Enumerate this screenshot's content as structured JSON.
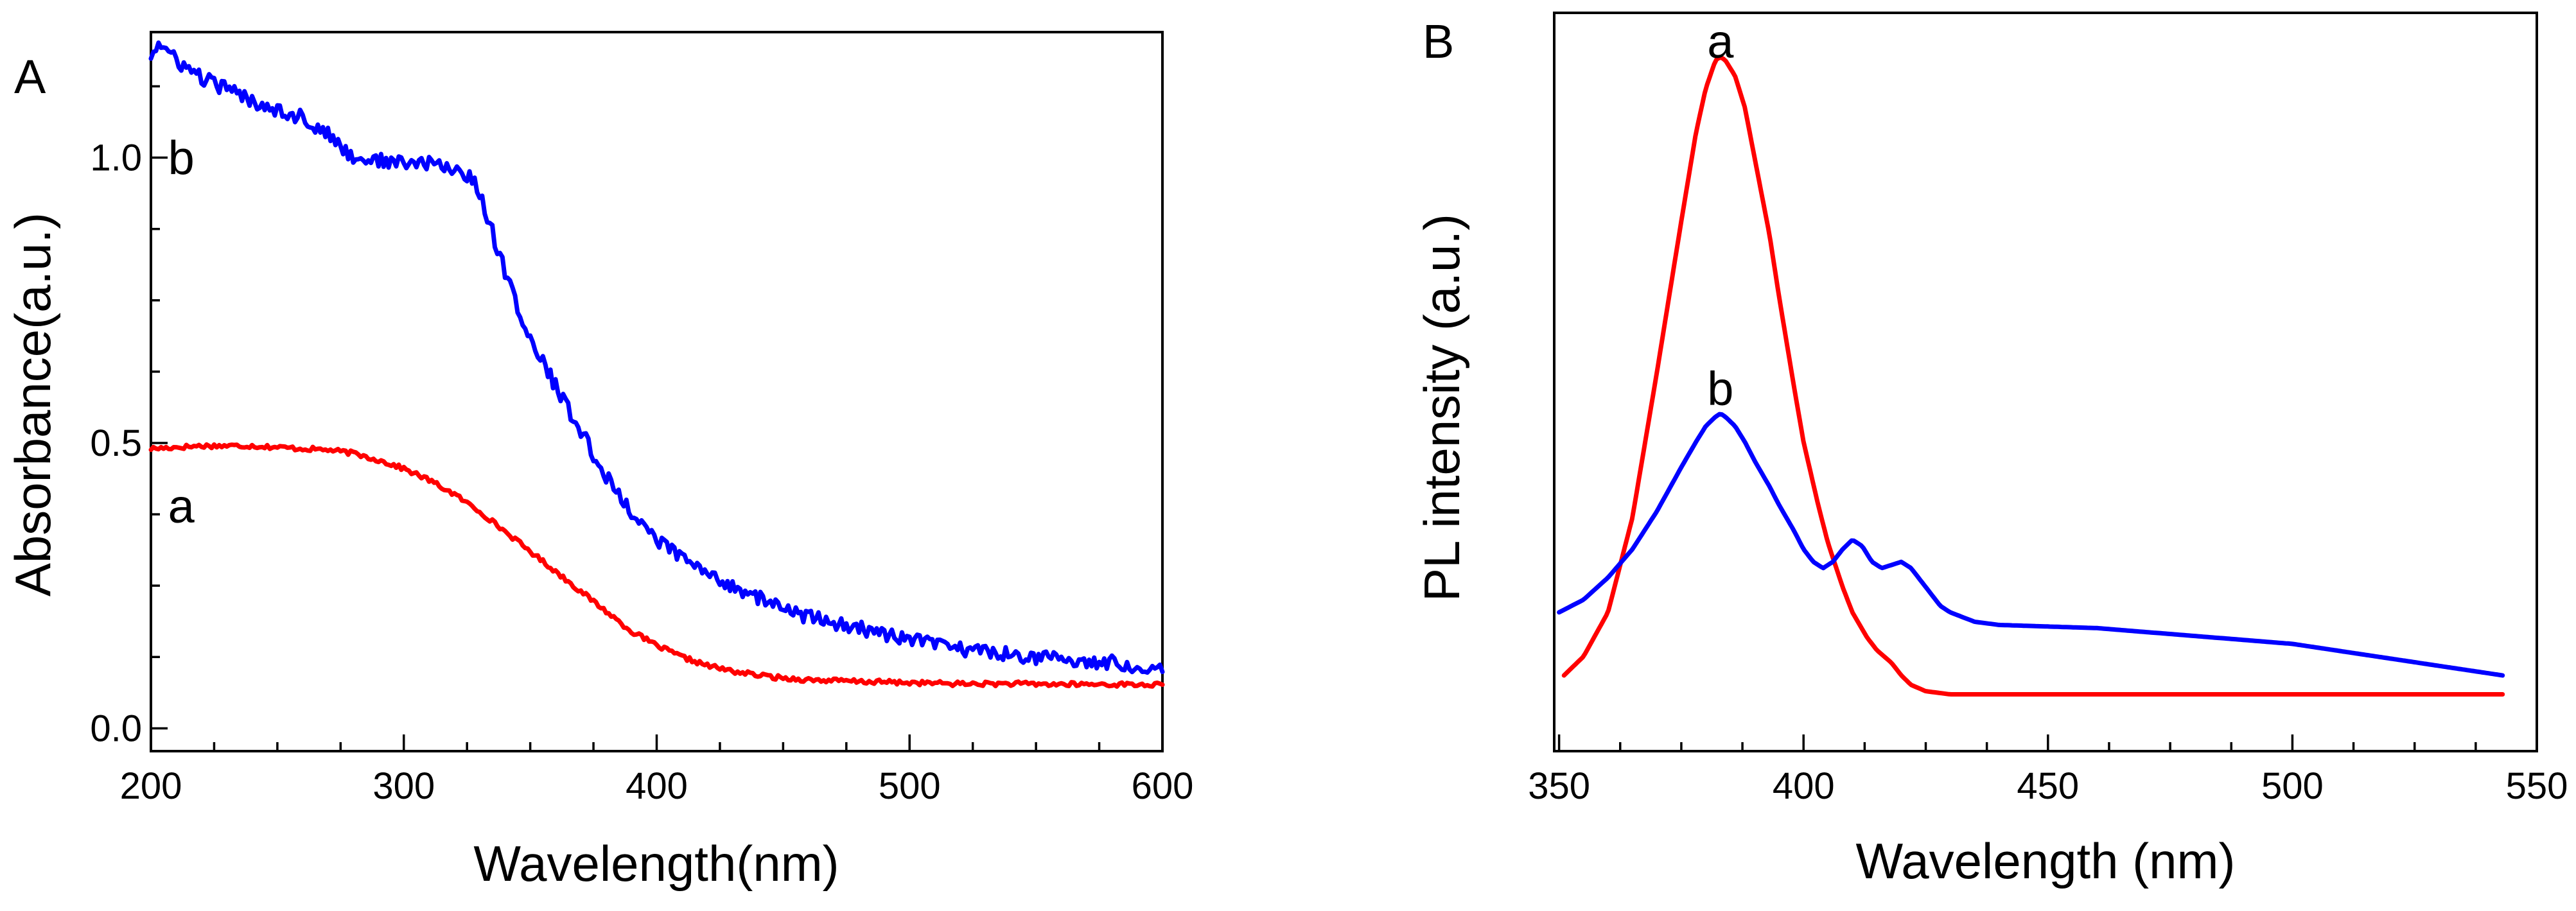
{
  "chart_data": [
    {
      "panel": "A",
      "type": "line",
      "xlabel": "Wavelength(nm)",
      "ylabel": "Absorbance(a.u.)",
      "xlim": [
        200,
        600
      ],
      "ylim": [
        -0.04,
        1.22
      ],
      "xticks": [
        200,
        300,
        400,
        500,
        600
      ],
      "xtick_labels": [
        "200",
        "300",
        "400",
        "500",
        "600"
      ],
      "yticks": [
        0.0,
        0.5,
        1.0
      ],
      "ytick_labels": [
        "0.0",
        "0.5",
        "1.0"
      ],
      "series": [
        {
          "name": "a",
          "color": "#ff0000",
          "noise": 0.004,
          "label_at": [
            212,
            0.39
          ],
          "x": [
            200,
            220,
            240,
            260,
            270,
            280,
            290,
            300,
            310,
            320,
            330,
            340,
            350,
            360,
            370,
            380,
            390,
            400,
            410,
            420,
            430,
            440,
            450,
            460,
            480,
            500,
            520,
            540,
            560,
            580,
            600
          ],
          "y": [
            0.49,
            0.495,
            0.495,
            0.49,
            0.488,
            0.482,
            0.47,
            0.455,
            0.435,
            0.41,
            0.38,
            0.345,
            0.31,
            0.275,
            0.24,
            0.205,
            0.17,
            0.145,
            0.125,
            0.11,
            0.1,
            0.093,
            0.088,
            0.085,
            0.082,
            0.08,
            0.078,
            0.078,
            0.077,
            0.077,
            0.076
          ]
        },
        {
          "name": "b",
          "color": "#0000ff",
          "noise": 0.013,
          "label_at": [
            212,
            1.0
          ],
          "x": [
            200,
            203,
            210,
            220,
            240,
            260,
            270,
            280,
            300,
            310,
            320,
            325,
            330,
            340,
            350,
            360,
            370,
            380,
            390,
            400,
            410,
            420,
            430,
            440,
            450,
            460,
            480,
            500,
            520,
            540,
            560,
            580,
            600
          ],
          "y": [
            1.18,
            1.2,
            1.17,
            1.14,
            1.1,
            1.07,
            1.04,
            1.0,
            0.99,
            0.99,
            0.98,
            0.97,
            0.94,
            0.8,
            0.68,
            0.6,
            0.52,
            0.44,
            0.38,
            0.33,
            0.3,
            0.27,
            0.25,
            0.23,
            0.21,
            0.195,
            0.175,
            0.155,
            0.14,
            0.13,
            0.12,
            0.115,
            0.105
          ]
        }
      ]
    },
    {
      "panel": "B",
      "type": "line",
      "xlabel": "Wavelength (nm)",
      "ylabel": "PL intensity (a.u.)",
      "xlim": [
        349,
        550
      ],
      "ylim": [
        -0.12,
        1.05
      ],
      "xticks": [
        350,
        400,
        450,
        500,
        550
      ],
      "xtick_labels": [
        "350",
        "400",
        "450",
        "500",
        "550"
      ],
      "yticks": [],
      "ytick_labels": [],
      "series": [
        {
          "name": "a",
          "color": "#ff0000",
          "noise": 0,
          "label_at": [
            383,
            1.005
          ],
          "x": [
            351,
            355,
            360,
            365,
            370,
            375,
            378,
            380,
            382,
            383,
            384,
            386,
            388,
            390,
            393,
            395,
            398,
            400,
            403,
            405,
            408,
            410,
            413,
            415,
            418,
            420,
            422,
            425,
            430,
            440,
            460,
            500,
            543
          ],
          "y": [
            0.0,
            0.03,
            0.1,
            0.25,
            0.48,
            0.72,
            0.86,
            0.93,
            0.975,
            0.98,
            0.975,
            0.95,
            0.9,
            0.82,
            0.7,
            0.6,
            0.46,
            0.37,
            0.27,
            0.21,
            0.14,
            0.1,
            0.06,
            0.04,
            0.02,
            0.0,
            -0.015,
            -0.025,
            -0.03,
            -0.03,
            -0.03,
            -0.03,
            -0.03
          ]
        },
        {
          "name": "b",
          "color": "#0000ff",
          "noise": 0,
          "label_at": [
            383,
            0.455
          ],
          "x": [
            350,
            355,
            360,
            365,
            370,
            375,
            378,
            380,
            382,
            383,
            384,
            386,
            388,
            390,
            393,
            395,
            398,
            400,
            402,
            404,
            406,
            408,
            410,
            412,
            414,
            416,
            418,
            420,
            422,
            424,
            426,
            428,
            430,
            435,
            440,
            460,
            500,
            543
          ],
          "y": [
            0.1,
            0.12,
            0.155,
            0.2,
            0.26,
            0.33,
            0.37,
            0.395,
            0.41,
            0.415,
            0.41,
            0.395,
            0.37,
            0.34,
            0.3,
            0.27,
            0.23,
            0.2,
            0.18,
            0.17,
            0.18,
            0.2,
            0.215,
            0.205,
            0.18,
            0.17,
            0.175,
            0.18,
            0.17,
            0.15,
            0.13,
            0.11,
            0.1,
            0.085,
            0.08,
            0.075,
            0.05,
            0.0
          ]
        }
      ]
    }
  ],
  "panels": {
    "A": {
      "letter": "A"
    },
    "B": {
      "letter": "B"
    }
  }
}
